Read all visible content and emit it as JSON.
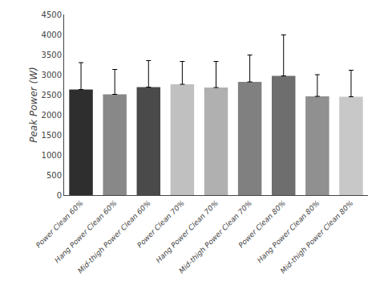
{
  "chart_data": {
    "type": "bar",
    "categories": [
      "Power Clean 60%",
      "Hang Power Clean 60%",
      "Mid-thigh Power Clean 60%",
      "Power Clean 70%",
      "Hang Power Clean 70%",
      "Mid-thigh Power Clean 70%",
      "Power Clean 80%",
      "Hang Power Clean 80%",
      "Mid-thigh Power Clean 80%"
    ],
    "values": [
      2630,
      2510,
      2690,
      2760,
      2680,
      2820,
      2970,
      2460,
      2450
    ],
    "errors": [
      670,
      620,
      660,
      570,
      650,
      670,
      1020,
      540,
      660
    ],
    "colors": [
      "#2e2e2e",
      "#888888",
      "#4a4a4a",
      "#c0c0c0",
      "#b0b0b0",
      "#808080",
      "#6e6e6e",
      "#909090",
      "#c8c8c8"
    ],
    "ylabel": "Peak Power (W)",
    "ylim": [
      0,
      4500
    ],
    "yticks": [
      0,
      500,
      1000,
      1500,
      2000,
      2500,
      3000,
      3500,
      4000,
      4500
    ],
    "grid": false
  }
}
